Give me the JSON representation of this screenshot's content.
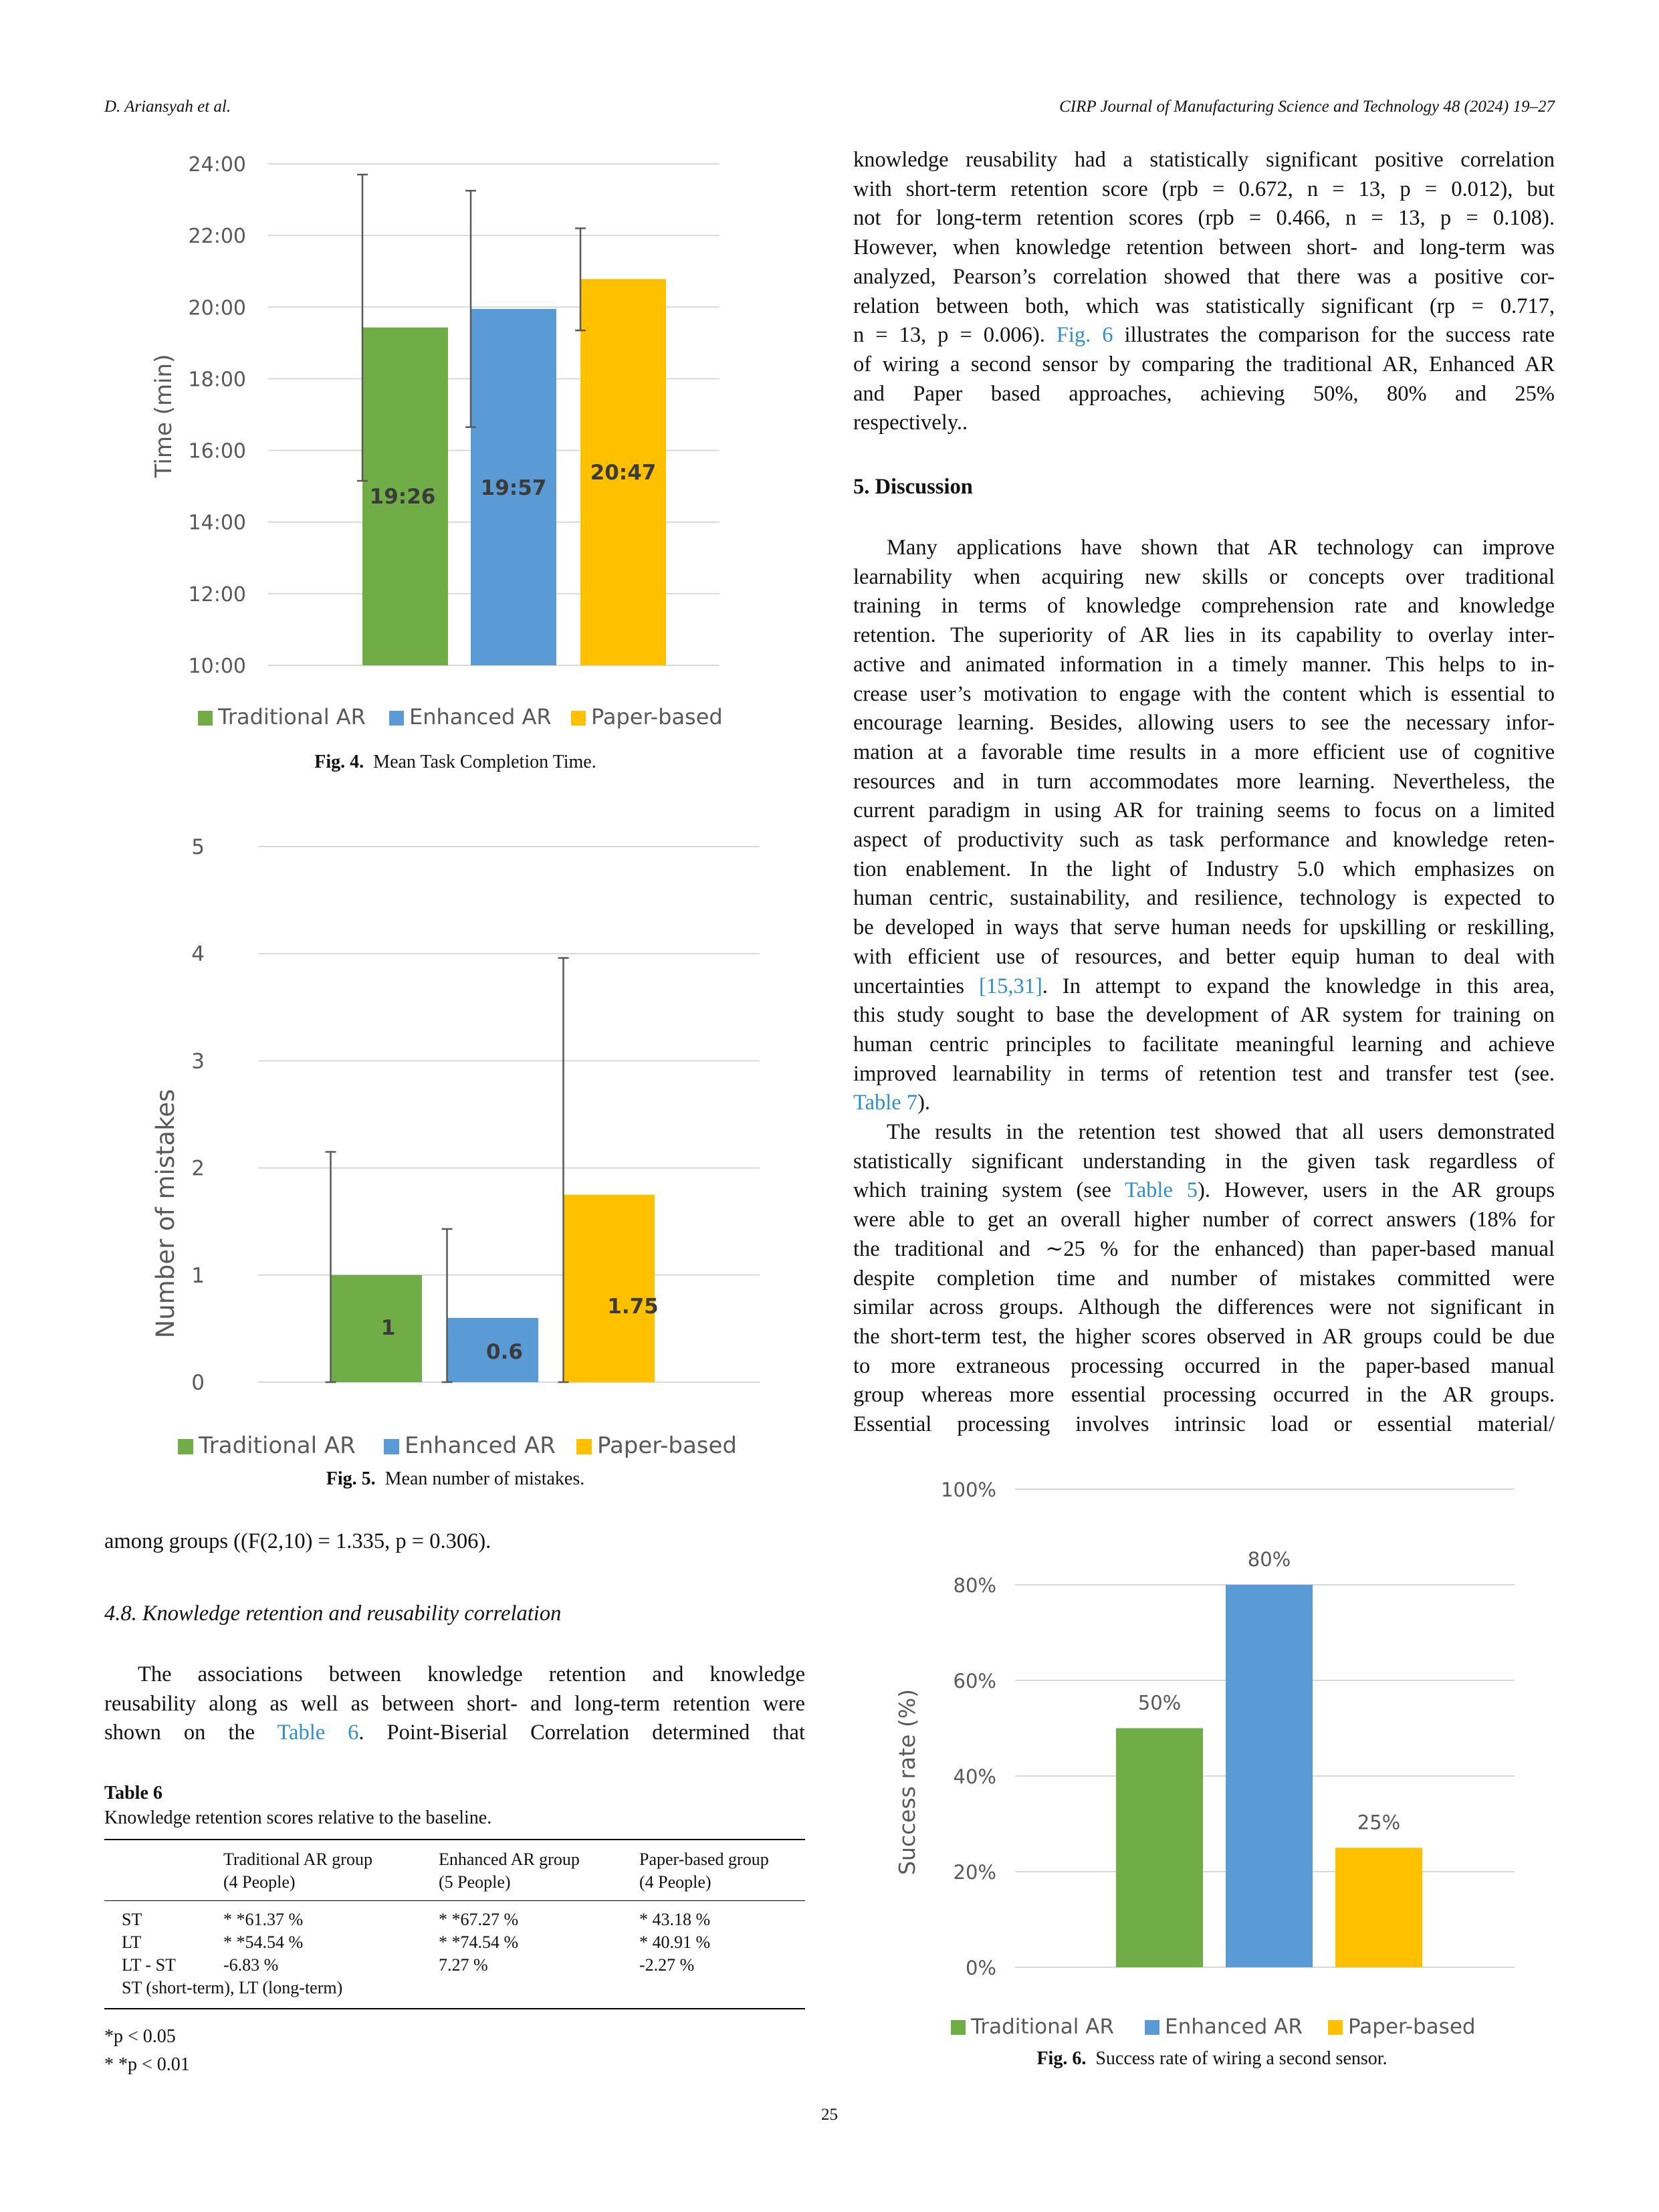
{
  "header": {
    "left": "D. Ariansyah et al.",
    "right": "CIRP Journal of Manufacturing Science and Technology 48 (2024) 19–27"
  },
  "page_number": "25",
  "right_column": {
    "para1_lines": [
      "knowledge reusability had a statistically significant positive correlation",
      "with short-term retention score (rpb = 0.672, n = 13, p = 0.012), but",
      "not for long-term retention scores (rpb = 0.466, n = 13, p = 0.108).",
      "However, when knowledge retention between short- and long-term was",
      "analyzed, Pearson’s correlation showed that there was a positive cor-",
      "relation between both, which was statistically significant (rp = 0.717,"
    ],
    "para1_line7_a": "n = 13, p = 0.006). ",
    "para1_line7_link": "Fig. 6",
    "para1_line7_b": " illustrates the comparison for the success rate",
    "para1_lines_end": [
      "of wiring a second sensor by comparing the traditional AR, Enhanced AR",
      "and Paper based approaches, achieving 50%, 80% and 25%"
    ],
    "para1_last": "respectively..",
    "section_title": "5.  Discussion",
    "para2_lines": [
      "Many applications have shown that AR technology can improve",
      "learnability when acquiring new skills or concepts over traditional",
      "training in terms of knowledge comprehension rate and knowledge",
      "retention. The superiority of AR lies in its capability to overlay inter-",
      "active and animated information in a timely manner. This helps to in-",
      "crease user’s motivation to engage with the content which is essential to",
      "encourage learning. Besides, allowing users to see the necessary infor-",
      "mation at a favorable time results in a more efficient use of cognitive",
      "resources and in turn accommodates more learning. Nevertheless, the",
      "current paradigm in using AR for training seems to focus on a limited",
      "aspect of productivity such as task performance and knowledge reten-",
      "tion enablement. In the light of Industry 5.0 which emphasizes on",
      "human centric, sustainability, and resilience, technology is expected to",
      "be developed in ways that serve human needs for upskilling or reskilling,",
      "with efficient use of resources, and better equip human to deal with"
    ],
    "para2_line16_a": "uncertainties ",
    "para2_line16_link": "[15,31]",
    "para2_line16_b": ". In attempt to expand the knowledge in this area,",
    "para2_lines_end": [
      "this study sought to base the development of AR system for training on",
      "human centric principles to facilitate meaningful learning and achieve",
      "improved learnability in terms of retention test and transfer test (see."
    ],
    "para2_last_link": "Table 7",
    "para2_last_b": ").",
    "para3_lines_a": [
      "The results in the retention test showed that all users demonstrated",
      "statistically significant understanding in the given task regardless of"
    ],
    "para3_line3_a": "which training system (see ",
    "para3_line3_link": "Table 5",
    "para3_line3_b": "). However, users in the AR groups",
    "para3_lines_b": [
      "were able to get an overall higher number of correct answers (18% for",
      "the traditional and ∼25 % for the enhanced) than paper-based manual",
      "despite completion time and number of mistakes committed were",
      "similar across groups. Although the differences were not significant in",
      "the short-term test, the higher scores observed in AR groups could be due",
      "to more extraneous processing occurred in the paper-based manual",
      "group whereas more essential processing occurred in the AR groups.",
      "Essential processing involves intrinsic load or essential material/"
    ]
  },
  "left_column": {
    "after_fig5": "among groups ((F(2,10) = 1.335, p = 0.306).",
    "subsection_title": "4.8.  Knowledge retention and reusability correlation",
    "para_lines": [
      "The associations between knowledge retention and knowledge",
      "reusability along as well as between short- and long-term retention were"
    ],
    "para_line3_a": "shown on the ",
    "para_line3_link": "Table 6",
    "para_line3_b": ". Point-Biserial Correlation determined that"
  },
  "figures": {
    "fig4_label": "Fig. 4.",
    "fig4_caption": "Mean Task Completion Time.",
    "fig5_label": "Fig. 5.",
    "fig5_caption": "Mean number of mistakes.",
    "fig6_label": "Fig. 6.",
    "fig6_caption": "Success rate of wiring a second sensor."
  },
  "table6": {
    "label": "Table 6",
    "caption": "Knowledge retention scores relative to the baseline.",
    "headers": [
      [
        "Traditional AR group",
        "(4 People)"
      ],
      [
        "Enhanced AR group",
        "(5 People)"
      ],
      [
        "Paper-based group",
        "(4 People)"
      ]
    ],
    "rows": [
      {
        "label": "ST",
        "values": [
          "* *61.37 %",
          "* *67.27 %",
          "* 43.18 %"
        ]
      },
      {
        "label": "LT",
        "values": [
          "* *54.54 %",
          "* *74.54 %",
          "* 40.91 %"
        ]
      },
      {
        "label": "LT - ST",
        "values": [
          "-6.83 %",
          "7.27 %",
          "-2.27 %"
        ]
      }
    ],
    "footer_row": "ST (short-term), LT (long-term)",
    "notes": [
      "*p < 0.05",
      "* *p < 0.01"
    ]
  },
  "colors": {
    "traditional": "#70AD47",
    "enhanced": "#5B9BD5",
    "paper": "#FFC000",
    "link": "#2f8fc8"
  },
  "chart_data": [
    {
      "id": "fig4",
      "type": "bar",
      "categories": [
        "Traditional AR",
        "Enhanced AR",
        "Paper-based"
      ],
      "values_minutes": [
        19.433,
        19.95,
        20.783
      ],
      "data_labels": [
        "19:26",
        "19:57",
        "20:47"
      ],
      "error_low_minutes": [
        15.15,
        16.65,
        19.35
      ],
      "error_high_minutes": [
        23.7,
        23.25,
        22.2
      ],
      "ylabel": "Time (min)",
      "ylim_minutes": [
        10,
        24
      ],
      "yticks": [
        "10:00",
        "12:00",
        "14:00",
        "16:00",
        "18:00",
        "20:00",
        "22:00",
        "24:00"
      ],
      "legend": [
        "Traditional AR",
        "Enhanced AR",
        "Paper-based"
      ],
      "legend_position": "bottom",
      "grid": true
    },
    {
      "id": "fig5",
      "type": "bar",
      "categories": [
        "Traditional AR",
        "Enhanced AR",
        "Paper-based"
      ],
      "values": [
        1,
        0.6,
        1.75
      ],
      "data_labels": [
        "1",
        "0.6",
        "1.75"
      ],
      "error_low": [
        0,
        0,
        0
      ],
      "error_high": [
        2.15,
        1.43,
        3.96
      ],
      "ylabel": "Number of mistakes",
      "ylim": [
        0,
        5
      ],
      "yticks": [
        "0",
        "1",
        "2",
        "3",
        "4",
        "5"
      ],
      "legend": [
        "Traditional AR",
        "Enhanced AR",
        "Paper-based"
      ],
      "legend_position": "bottom",
      "grid": true
    },
    {
      "id": "fig6",
      "type": "bar",
      "categories": [
        "Traditional AR",
        "Enhanced AR",
        "Paper-based"
      ],
      "values": [
        50,
        80,
        25
      ],
      "data_labels": [
        "50%",
        "80%",
        "25%"
      ],
      "ylabel": "Success rate (%)",
      "ylim": [
        0,
        100
      ],
      "yticks": [
        "0%",
        "20%",
        "40%",
        "60%",
        "80%",
        "100%"
      ],
      "legend": [
        "Traditional AR",
        "Enhanced AR",
        "Paper-based"
      ],
      "legend_position": "bottom",
      "grid": true
    }
  ]
}
